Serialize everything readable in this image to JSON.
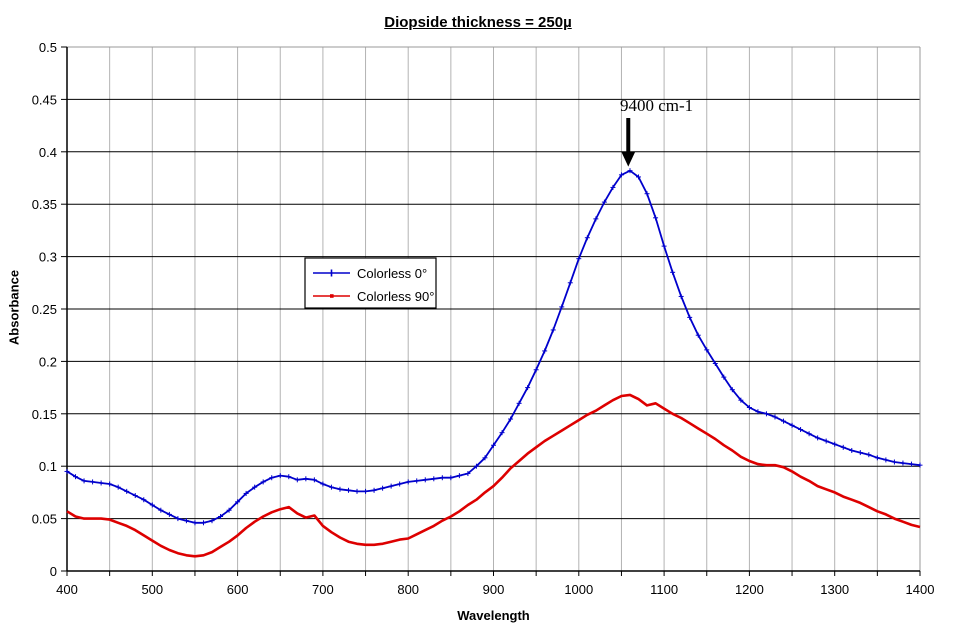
{
  "chart_data": {
    "type": "line",
    "title": "Diopside thickness = 250µ",
    "xlabel": "Wavelength",
    "ylabel": "Absorbance",
    "xlim": [
      400,
      1400
    ],
    "ylim": [
      0,
      0.5
    ],
    "x_tick_labels": [
      "400",
      "500",
      "600",
      "700",
      "800",
      "900",
      "1000",
      "1100",
      "1200",
      "1300",
      "1400"
    ],
    "x_minor_gridline_step": 50,
    "y_tick_labels": [
      "0",
      "0.05",
      "0.1",
      "0.15",
      "0.2",
      "0.25",
      "0.3",
      "0.35",
      "0.4",
      "0.45",
      "0.5"
    ],
    "grid": true,
    "legend_position": "inside-center-left",
    "annotations": [
      {
        "text": "9400 cm-1",
        "x": 1058,
        "y": 0.382
      }
    ],
    "x": [
      400,
      410,
      420,
      430,
      440,
      450,
      460,
      470,
      480,
      490,
      500,
      510,
      520,
      530,
      540,
      550,
      560,
      570,
      580,
      590,
      600,
      610,
      620,
      630,
      640,
      650,
      660,
      670,
      680,
      690,
      700,
      710,
      720,
      730,
      740,
      750,
      760,
      770,
      780,
      790,
      800,
      810,
      820,
      830,
      840,
      850,
      860,
      870,
      880,
      890,
      900,
      910,
      920,
      930,
      940,
      950,
      960,
      970,
      980,
      990,
      1000,
      1010,
      1020,
      1030,
      1040,
      1050,
      1060,
      1070,
      1080,
      1090,
      1100,
      1110,
      1120,
      1130,
      1140,
      1150,
      1160,
      1170,
      1180,
      1190,
      1200,
      1210,
      1220,
      1230,
      1240,
      1250,
      1260,
      1270,
      1280,
      1290,
      1300,
      1310,
      1320,
      1330,
      1340,
      1350,
      1360,
      1370,
      1380,
      1390,
      1400
    ],
    "series": [
      {
        "name": "Colorless 0°",
        "color": "#0000cc",
        "marker": "plus",
        "values": [
          0.095,
          0.09,
          0.086,
          0.085,
          0.084,
          0.083,
          0.08,
          0.076,
          0.072,
          0.068,
          0.063,
          0.058,
          0.054,
          0.05,
          0.048,
          0.046,
          0.046,
          0.048,
          0.052,
          0.058,
          0.066,
          0.074,
          0.08,
          0.085,
          0.089,
          0.091,
          0.09,
          0.087,
          0.088,
          0.087,
          0.083,
          0.08,
          0.078,
          0.077,
          0.076,
          0.076,
          0.077,
          0.079,
          0.081,
          0.083,
          0.085,
          0.086,
          0.087,
          0.088,
          0.089,
          0.089,
          0.091,
          0.093,
          0.1,
          0.108,
          0.12,
          0.132,
          0.145,
          0.16,
          0.175,
          0.192,
          0.21,
          0.23,
          0.252,
          0.275,
          0.298,
          0.318,
          0.336,
          0.352,
          0.366,
          0.378,
          0.382,
          0.376,
          0.36,
          0.337,
          0.31,
          0.285,
          0.262,
          0.242,
          0.225,
          0.211,
          0.198,
          0.185,
          0.173,
          0.163,
          0.156,
          0.152,
          0.15,
          0.147,
          0.143,
          0.139,
          0.135,
          0.131,
          0.127,
          0.124,
          0.121,
          0.118,
          0.115,
          0.113,
          0.111,
          0.108,
          0.106,
          0.104,
          0.103,
          0.102,
          0.101
        ]
      },
      {
        "name": "Colorless 90°",
        "color": "#dd0000",
        "marker": "dash",
        "values": [
          0.057,
          0.052,
          0.05,
          0.05,
          0.05,
          0.049,
          0.046,
          0.043,
          0.039,
          0.034,
          0.029,
          0.024,
          0.02,
          0.017,
          0.015,
          0.014,
          0.015,
          0.018,
          0.023,
          0.028,
          0.034,
          0.041,
          0.047,
          0.052,
          0.056,
          0.059,
          0.061,
          0.055,
          0.051,
          0.053,
          0.043,
          0.037,
          0.032,
          0.028,
          0.026,
          0.025,
          0.025,
          0.026,
          0.028,
          0.03,
          0.031,
          0.035,
          0.039,
          0.043,
          0.048,
          0.052,
          0.057,
          0.063,
          0.068,
          0.075,
          0.081,
          0.089,
          0.098,
          0.105,
          0.112,
          0.118,
          0.124,
          0.129,
          0.134,
          0.139,
          0.144,
          0.149,
          0.153,
          0.158,
          0.163,
          0.167,
          0.168,
          0.164,
          0.158,
          0.16,
          0.155,
          0.15,
          0.146,
          0.141,
          0.136,
          0.131,
          0.126,
          0.12,
          0.115,
          0.109,
          0.105,
          0.102,
          0.101,
          0.101,
          0.099,
          0.095,
          0.09,
          0.086,
          0.081,
          0.078,
          0.075,
          0.071,
          0.068,
          0.065,
          0.061,
          0.057,
          0.054,
          0.05,
          0.047,
          0.044,
          0.042
        ]
      }
    ],
    "colors": {
      "background": "#ffffff",
      "gridline_major": "#000000",
      "gridline_minor": "#b3b3b3",
      "plot_border": "#999999",
      "axis": "#000000",
      "annotation_arrow": "#000000"
    }
  }
}
